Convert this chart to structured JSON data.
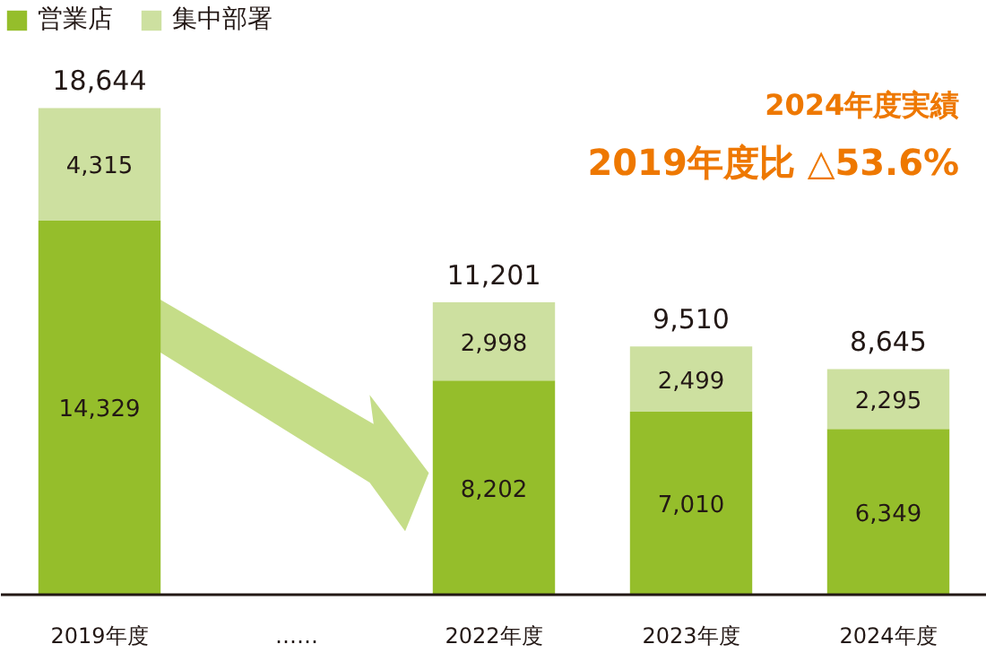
{
  "chart_data": {
    "type": "bar",
    "stacked": true,
    "categories": [
      "2019年度",
      "……",
      "2022年度",
      "2023年度",
      "2024年度"
    ],
    "series": [
      {
        "name": "営業店",
        "color": "#95be2b",
        "values": [
          14329,
          null,
          8202,
          7010,
          6349
        ],
        "value_labels": [
          "14,329",
          null,
          "8,202",
          "7,010",
          "6,349"
        ]
      },
      {
        "name": "集中部署",
        "color": "#cde0a0",
        "values": [
          4315,
          null,
          2998,
          2499,
          2295
        ],
        "value_labels": [
          "4,315",
          null,
          "2,998",
          "2,499",
          "2,295"
        ]
      }
    ],
    "totals": [
      "18,644",
      null,
      "11,201",
      "9,510",
      "8,645"
    ],
    "annotations": [
      "2024年度実績",
      "2019年度比 △53.6%"
    ],
    "legend": "top left",
    "grid": false
  }
}
